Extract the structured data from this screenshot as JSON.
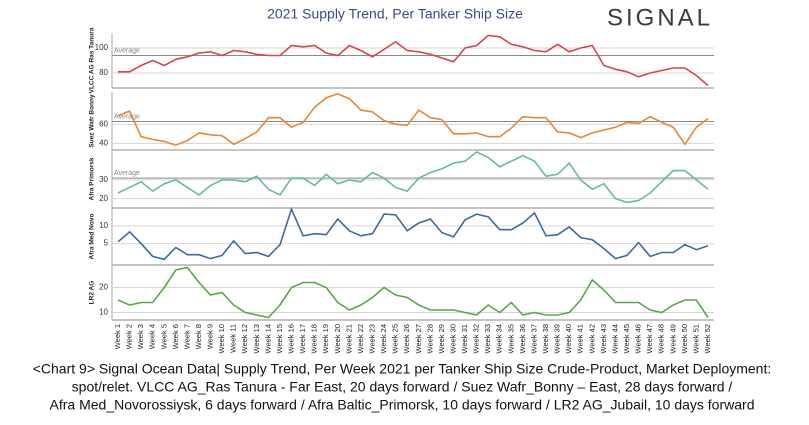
{
  "title": "2021 Supply Trend, Per Tanker Ship Size",
  "logo": "SIGNAL",
  "caption": [
    "<Chart 9> Signal Ocean Data| Supply Trend, Per Week 2021 per Tanker Ship Size Crude-Product, Market Deployment:",
    "spot/relet. VLCC AG_Ras Tanura - Far East, 20 days forward / Suez Wafr_Bonny – East, 28 days forward /",
    "Afra Med_Novorossiysk, 6 days forward / Afra Baltic_Primorsk, 10 days forward / LR2 AG_Jubail, 10 days forward"
  ],
  "chart_data": [
    {
      "type": "line",
      "y_label": "VLCC AG Ras Tanura",
      "color": "#d9444e",
      "ylim": [
        68,
        112
      ],
      "yticks": [
        80,
        100
      ],
      "grid": true,
      "average": {
        "label": "Average",
        "value": 94
      },
      "values": [
        81,
        81,
        86,
        90,
        86,
        91,
        93,
        96,
        97,
        94,
        98,
        97,
        95,
        94,
        94,
        102,
        101,
        102,
        96,
        94,
        102,
        98,
        93,
        99,
        105,
        98,
        97,
        95,
        92,
        89,
        100,
        102,
        110,
        109,
        103,
        101,
        98,
        97,
        103,
        97,
        100,
        102,
        86,
        83,
        81,
        77,
        80,
        82,
        84,
        84,
        78,
        70
      ]
    },
    {
      "type": "line",
      "y_label": "Suez Wafr Bonny",
      "color": "#e8873a",
      "ylim": [
        33,
        94
      ],
      "yticks": [
        40,
        60
      ],
      "grid": true,
      "average": {
        "label": "Average",
        "value": 63
      },
      "values": [
        69,
        74,
        47,
        44,
        42,
        38,
        43,
        51,
        49,
        48,
        39,
        45,
        52,
        67,
        67,
        57,
        62,
        78,
        88,
        92,
        87,
        75,
        73,
        64,
        60,
        59,
        75,
        67,
        65,
        50,
        50,
        51,
        47,
        47,
        56,
        68,
        67,
        67,
        52,
        51,
        46,
        51,
        54,
        57,
        62,
        61,
        68,
        62,
        57,
        39,
        57,
        66
      ]
    },
    {
      "type": "line",
      "y_label": "Afra Primorsk",
      "color": "#6bb5ad",
      "ylim": [
        15,
        46
      ],
      "yticks": [
        20,
        30
      ],
      "grid": true,
      "average": {
        "label": "Average",
        "value": 31
      },
      "values": [
        23,
        26,
        29,
        24,
        28,
        30,
        26,
        22,
        27,
        30,
        30,
        29,
        32,
        25,
        22,
        31,
        31,
        27,
        33,
        28,
        30,
        29,
        34,
        31,
        26,
        24,
        31,
        34,
        36,
        39,
        40,
        45,
        42,
        37,
        40,
        43,
        40,
        32,
        33,
        39,
        30,
        25,
        28,
        20,
        18,
        19,
        23,
        29,
        35,
        35,
        30,
        25
      ]
    },
    {
      "type": "line",
      "y_label": "Afra Med Novo",
      "color": "#3d6aa0",
      "ylim": [
        -1,
        15
      ],
      "yticks": [
        5,
        10
      ],
      "grid": true,
      "values": [
        5.5,
        8.3,
        5,
        1.4,
        0.6,
        3.9,
        1.9,
        1.9,
        0.8,
        1.7,
        5.8,
        2.2,
        2.5,
        1.4,
        4.7,
        14.7,
        7.2,
        7.8,
        7.5,
        11.9,
        8.6,
        7.2,
        7.8,
        13.3,
        13.1,
        8.6,
        10.8,
        11.9,
        8.1,
        6.9,
        11.7,
        13.3,
        12.5,
        8.9,
        8.9,
        10.8,
        13.6,
        7.2,
        7.5,
        9.7,
        6.7,
        6.1,
        3.6,
        0.8,
        1.7,
        5.3,
        1.4,
        2.5,
        2.5,
        4.7,
        3.3,
        4.4
      ]
    },
    {
      "type": "line",
      "y_label": "LR2 AG",
      "color": "#5aa64a",
      "ylim": [
        7,
        29
      ],
      "yticks": [
        10,
        20
      ],
      "grid": true,
      "categories": [
        "Week 1",
        "Week 2",
        "Week 3",
        "Week 4",
        "Week 5",
        "Week 6",
        "Week 7",
        "Week 8",
        "Week 9",
        "Week 10",
        "Week 11",
        "Week 12",
        "Week 13",
        "Week 14",
        "Week 15",
        "Week 16",
        "Week 17",
        "Week 18",
        "Week 19",
        "Week 20",
        "Week 21",
        "Week 22",
        "Week 23",
        "Week 24",
        "Week 25",
        "Week 26",
        "Week 27",
        "Week 28",
        "Week 29",
        "Week 30",
        "Week 31",
        "Week 32",
        "Week 33",
        "Week 34",
        "Week 35",
        "Week 36",
        "Week 37",
        "Week 38",
        "Week 39",
        "Week 40",
        "Week 41",
        "Week 42",
        "Week 43",
        "Week 44",
        "Week 45",
        "Week 46",
        "Week 47",
        "Week 48",
        "Week 49",
        "Week 50",
        "Week 51",
        "Week 52"
      ],
      "values": [
        15,
        13,
        14,
        14,
        20,
        27,
        28,
        22,
        17,
        18,
        13,
        10,
        9,
        8,
        13,
        20,
        22,
        22,
        20,
        14,
        11,
        13,
        16,
        20,
        17,
        16,
        13,
        11,
        11,
        11,
        10,
        9,
        13,
        10,
        14,
        9,
        10,
        9,
        9,
        10,
        15,
        23,
        19,
        14,
        14,
        14,
        11,
        10,
        13,
        15,
        15,
        8
      ]
    }
  ]
}
